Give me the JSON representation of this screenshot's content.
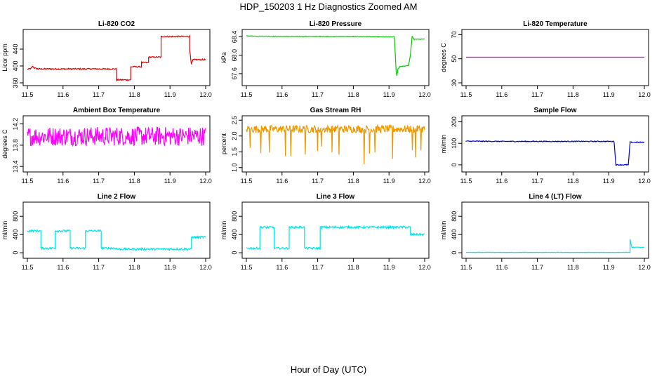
{
  "title": "HDP_150203  1 Hz Diagnostics Zoomed AM",
  "xlabel": "Hour of Day (UTC)",
  "chart_data": [
    {
      "type": "line",
      "title": "Li-820 CO2",
      "ylabel": "Licor ppm",
      "color": "#dd0000",
      "xlim": [
        11.5,
        12.0
      ],
      "ylim": [
        360,
        480
      ],
      "yticks": [
        "360",
        "400",
        "440"
      ],
      "xticks": [
        "11.5",
        "11.6",
        "11.7",
        "11.8",
        "11.9",
        "12.0"
      ],
      "noise": 1.5,
      "x": [
        11.5,
        11.51,
        11.515,
        11.52,
        11.53,
        11.75,
        11.75,
        11.79,
        11.79,
        11.82,
        11.82,
        11.84,
        11.84,
        11.875,
        11.875,
        11.955,
        11.955,
        11.96,
        11.965,
        12.0
      ],
      "y": [
        392,
        394,
        399,
        395,
        393,
        393,
        367,
        367,
        398,
        398,
        408,
        408,
        421,
        421,
        470,
        470,
        440,
        405,
        415,
        415
      ]
    },
    {
      "type": "line",
      "title": "Li-820 Pressure",
      "ylabel": "kPa",
      "color": "#00cc00",
      "xlim": [
        11.5,
        12.0
      ],
      "ylim": [
        67.4,
        68.5
      ],
      "yticks": [
        "67.6",
        "68.0",
        "68.4"
      ],
      "xticks": [
        "11.5",
        "11.6",
        "11.7",
        "11.8",
        "11.9",
        "12.0"
      ],
      "noise": 0.006,
      "x": [
        11.5,
        11.6,
        11.7,
        11.8,
        11.9,
        11.915,
        11.92,
        11.922,
        11.925,
        11.93,
        11.955,
        11.96,
        11.965,
        11.97,
        12.0
      ],
      "y": [
        68.42,
        68.41,
        68.41,
        68.41,
        68.4,
        68.4,
        67.65,
        67.55,
        67.7,
        67.75,
        67.78,
        68.0,
        68.42,
        68.35,
        68.35
      ]
    },
    {
      "type": "line",
      "title": "Li-820 Temperature",
      "ylabel": "degrees C",
      "color": "#cc00cc",
      "xlim": [
        11.5,
        12.0
      ],
      "ylim": [
        30,
        72
      ],
      "yticks": [
        "30",
        "50",
        "70"
      ],
      "xticks": [
        "11.5",
        "11.6",
        "11.7",
        "11.8",
        "11.9",
        "12.0"
      ],
      "noise": 0,
      "x": [
        11.5,
        12.0
      ],
      "y": [
        51.3,
        51.3
      ]
    },
    {
      "type": "line",
      "title": "Ambient Box Temperature",
      "ylabel": "degrees C",
      "color": "#ff00ff",
      "xlim": [
        11.5,
        12.0
      ],
      "ylim": [
        13.35,
        14.3
      ],
      "yticks": [
        "13.4",
        "13.8",
        "14.2"
      ],
      "xticks": [
        "11.5",
        "11.6",
        "11.7",
        "11.8",
        "11.9",
        "12.0"
      ],
      "noise": 0.18,
      "x": [
        11.5,
        12.0
      ],
      "y": [
        13.97,
        13.97
      ]
    },
    {
      "type": "line",
      "title": "Gas Stream RH",
      "ylabel": "percent",
      "color": "#ee9900",
      "xlim": [
        11.5,
        12.0
      ],
      "ylim": [
        0.95,
        2.55
      ],
      "yticks": [
        "1.0",
        "1.5",
        "2.0",
        "2.5"
      ],
      "xticks": [
        "11.5",
        "11.6",
        "11.7",
        "11.8",
        "11.9",
        "12.0"
      ],
      "noise": 0.12,
      "dips": [
        11.51,
        11.54,
        11.565,
        11.61,
        11.625,
        11.665,
        11.7,
        11.71,
        11.74,
        11.76,
        11.83,
        11.845,
        11.86,
        11.91,
        11.965,
        11.975,
        11.99
      ],
      "x": [
        11.5,
        12.0
      ],
      "y": [
        2.22,
        2.22
      ]
    },
    {
      "type": "line",
      "title": "Sample Flow",
      "ylabel": "ml/min",
      "color": "#0000cc",
      "xlim": [
        11.5,
        12.0
      ],
      "ylim": [
        -20,
        215
      ],
      "yticks": [
        "0",
        "100",
        "200"
      ],
      "xticks": [
        "11.5",
        "11.6",
        "11.7",
        "11.8",
        "11.9",
        "12.0"
      ],
      "noise": 2,
      "x": [
        11.5,
        11.5,
        11.6,
        11.8,
        11.915,
        11.92,
        11.955,
        11.96,
        12.0
      ],
      "y": [
        112,
        110,
        109,
        109,
        109,
        0,
        0,
        105,
        105
      ]
    },
    {
      "type": "line",
      "title": "Line 2 Flow",
      "ylabel": "ml/min",
      "color": "#00e5e5",
      "xlim": [
        11.5,
        12.0
      ],
      "ylim": [
        -60,
        1050
      ],
      "yticks": [
        "0",
        "400",
        "800"
      ],
      "xticks": [
        "11.5",
        "11.6",
        "11.7",
        "11.8",
        "11.9",
        "12.0"
      ],
      "noise": 22,
      "x": [
        11.5,
        11.538,
        11.538,
        11.578,
        11.578,
        11.62,
        11.62,
        11.663,
        11.663,
        11.707,
        11.707,
        11.75,
        11.75,
        11.96,
        11.96,
        12.0
      ],
      "y": [
        480,
        480,
        100,
        100,
        480,
        480,
        100,
        100,
        480,
        480,
        100,
        100,
        80,
        80,
        340,
        340
      ]
    },
    {
      "type": "line",
      "title": "Line 3 Flow",
      "ylabel": "ml/min",
      "color": "#00e5e5",
      "xlim": [
        11.5,
        12.0
      ],
      "ylim": [
        -60,
        1050
      ],
      "yticks": [
        "0",
        "400",
        "800"
      ],
      "xticks": [
        "11.5",
        "11.6",
        "11.7",
        "11.8",
        "11.9",
        "12.0"
      ],
      "noise": 22,
      "x": [
        11.5,
        11.538,
        11.538,
        11.578,
        11.578,
        11.62,
        11.62,
        11.663,
        11.663,
        11.707,
        11.707,
        11.96,
        11.96,
        12.0
      ],
      "y": [
        100,
        100,
        560,
        560,
        100,
        100,
        560,
        560,
        100,
        100,
        560,
        560,
        400,
        400
      ]
    },
    {
      "type": "line",
      "title": "Line 4 (LT) Flow",
      "ylabel": "ml/min",
      "color": "#00e5e5",
      "xlim": [
        11.5,
        12.0
      ],
      "ylim": [
        -60,
        1050
      ],
      "yticks": [
        "0",
        "400",
        "800"
      ],
      "xticks": [
        "11.5",
        "11.6",
        "11.7",
        "11.8",
        "11.9",
        "12.0"
      ],
      "noise": 4,
      "x": [
        11.5,
        11.96,
        11.96,
        11.962,
        11.965,
        12.0
      ],
      "y": [
        8,
        8,
        300,
        200,
        120,
        120
      ]
    }
  ]
}
